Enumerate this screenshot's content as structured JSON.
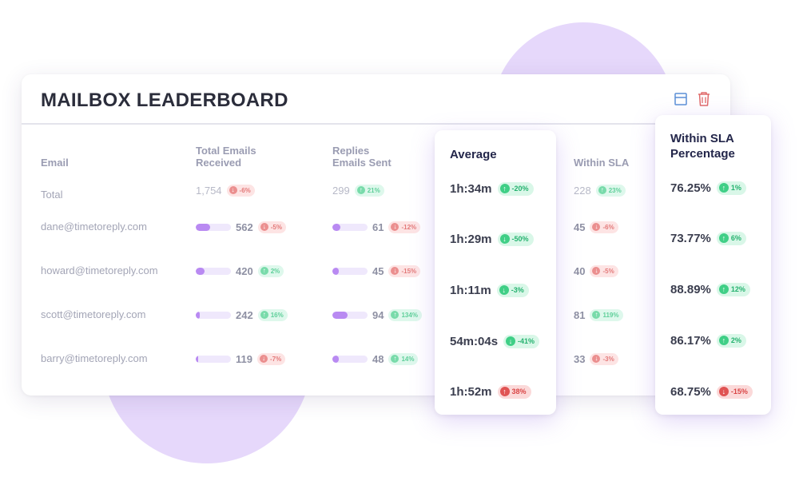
{
  "title": "MAILBOX LEADERBOARD",
  "header_icons": [
    "layout-icon",
    "trash-icon"
  ],
  "columns": {
    "email": "Email",
    "received_1": "Total Emails",
    "received_2": "Received",
    "replies_1": "Replies",
    "replies_2": "Emails Sent",
    "average": "Average",
    "within_sla": "Within SLA",
    "pct_1": "Within SLA",
    "pct_2": "Percentage"
  },
  "colors": {
    "accent": "#b98af2",
    "blob": "#e6d8fb",
    "down": "#e05353",
    "up": "#3fcf86"
  },
  "rows": [
    {
      "email": "Total",
      "received": {
        "value": "1,754",
        "change": "-6%",
        "dir": "down",
        "level": 0
      },
      "replies": {
        "value": "299",
        "change": "21%",
        "dir": "up",
        "level": 0
      },
      "average": {
        "value": "1h:34m",
        "change": "-20%",
        "dir": "up"
      },
      "within": {
        "value": "228",
        "change": "23%",
        "dir": "up"
      },
      "pct": {
        "value": "76.25%",
        "change": "1%",
        "dir": "up"
      }
    },
    {
      "email": "dane@timetoreply.com",
      "received": {
        "value": "562",
        "change": "-5%",
        "dir": "down",
        "level": 0.42
      },
      "replies": {
        "value": "61",
        "change": "-12%",
        "dir": "down",
        "level": 0.22
      },
      "average": {
        "value": "1h:29m",
        "change": "-50%",
        "dir": "down"
      },
      "within": {
        "value": "45",
        "change": "-6%",
        "dir": "down"
      },
      "pct": {
        "value": "73.77%",
        "change": "6%",
        "dir": "up"
      }
    },
    {
      "email": "howard@timetoreply.com",
      "received": {
        "value": "420",
        "change": "2%",
        "dir": "up",
        "level": 0.26
      },
      "replies": {
        "value": "45",
        "change": "-15%",
        "dir": "down",
        "level": 0.18
      },
      "average": {
        "value": "1h:11m",
        "change": "-3%",
        "dir": "down"
      },
      "within": {
        "value": "40",
        "change": "-5%",
        "dir": "down"
      },
      "pct": {
        "value": "88.89%",
        "change": "12%",
        "dir": "up"
      }
    },
    {
      "email": "scott@timetoreply.com",
      "received": {
        "value": "242",
        "change": "16%",
        "dir": "up",
        "level": 0.12
      },
      "replies": {
        "value": "94",
        "change": "134%",
        "dir": "up",
        "level": 0.44
      },
      "average": {
        "value": "54m:04s",
        "change": "-41%",
        "dir": "down"
      },
      "within": {
        "value": "81",
        "change": "119%",
        "dir": "up"
      },
      "pct": {
        "value": "86.17%",
        "change": "2%",
        "dir": "up"
      }
    },
    {
      "email": "barry@timetoreply.com",
      "received": {
        "value": "119",
        "change": "-7%",
        "dir": "down",
        "level": 0.06
      },
      "replies": {
        "value": "48",
        "change": "14%",
        "dir": "up",
        "level": 0.18
      },
      "average": {
        "value": "1h:52m",
        "change": "38%",
        "dir": "up-bad"
      },
      "within": {
        "value": "33",
        "change": "-3%",
        "dir": "down"
      },
      "pct": {
        "value": "68.75%",
        "change": "-15%",
        "dir": "down"
      }
    }
  ]
}
